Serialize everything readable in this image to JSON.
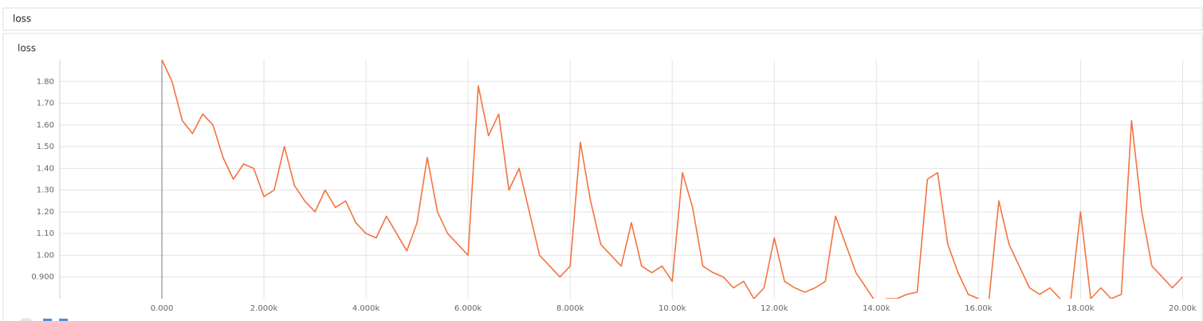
{
  "header": {
    "title": "loss"
  },
  "chart_data": {
    "type": "line",
    "title": "loss",
    "x": [
      0,
      200,
      400,
      600,
      800,
      1000,
      1200,
      1400,
      1600,
      1800,
      2000,
      2200,
      2400,
      2600,
      2800,
      3000,
      3200,
      3400,
      3600,
      3800,
      4000,
      4200,
      4400,
      4600,
      4800,
      5000,
      5200,
      5400,
      5600,
      5800,
      6000,
      6200,
      6400,
      6600,
      6800,
      7000,
      7200,
      7400,
      7600,
      7800,
      8000,
      8200,
      8400,
      8600,
      8800,
      9000,
      9200,
      9400,
      9600,
      9800,
      10000,
      10200,
      10400,
      10600,
      10800,
      11000,
      11200,
      11400,
      11600,
      11800,
      12000,
      12200,
      12400,
      12600,
      12800,
      13000,
      13200,
      13400,
      13600,
      13800,
      14000,
      14200,
      14400,
      14600,
      14800,
      15000,
      15200,
      15400,
      15600,
      15800,
      16000,
      16200,
      16400,
      16600,
      16800,
      17000,
      17200,
      17400,
      17600,
      17800,
      18000,
      18200,
      18400,
      18600,
      18800,
      19000,
      19200,
      19400,
      19600,
      19800,
      20000
    ],
    "series": [
      {
        "name": "loss",
        "color": "#f4733f",
        "values": [
          1.9,
          1.8,
          1.62,
          1.56,
          1.65,
          1.6,
          1.45,
          1.35,
          1.42,
          1.4,
          1.27,
          1.3,
          1.5,
          1.32,
          1.25,
          1.2,
          1.3,
          1.22,
          1.25,
          1.15,
          1.1,
          1.08,
          1.18,
          1.1,
          1.02,
          1.15,
          1.45,
          1.2,
          1.1,
          1.05,
          1.0,
          1.78,
          1.55,
          1.65,
          1.3,
          1.4,
          1.2,
          1.0,
          0.95,
          0.9,
          0.95,
          1.52,
          1.25,
          1.05,
          1.0,
          0.95,
          1.15,
          0.95,
          0.92,
          0.95,
          0.88,
          1.38,
          1.22,
          0.95,
          0.92,
          0.9,
          0.85,
          0.88,
          0.8,
          0.85,
          1.08,
          0.88,
          0.85,
          0.83,
          0.85,
          0.88,
          1.18,
          1.05,
          0.92,
          0.85,
          0.78,
          0.8,
          0.8,
          0.82,
          0.83,
          1.35,
          1.38,
          1.05,
          0.92,
          0.82,
          0.8,
          0.78,
          1.25,
          1.05,
          0.95,
          0.85,
          0.82,
          0.85,
          0.8,
          0.78,
          1.2,
          0.8,
          0.85,
          0.8,
          0.82,
          1.62,
          1.2,
          0.95,
          0.9,
          0.85,
          0.9
        ]
      }
    ],
    "xlim": [
      -2000,
      20400
    ],
    "ylim": [
      0.8,
      1.9
    ],
    "xticks": [
      {
        "value": 0,
        "label": "0.000"
      },
      {
        "value": 2000,
        "label": "2.000k"
      },
      {
        "value": 4000,
        "label": "4.000k"
      },
      {
        "value": 6000,
        "label": "6.000k"
      },
      {
        "value": 8000,
        "label": "8.000k"
      },
      {
        "value": 10000,
        "label": "10.00k"
      },
      {
        "value": 12000,
        "label": "12.00k"
      },
      {
        "value": 14000,
        "label": "14.00k"
      },
      {
        "value": 16000,
        "label": "16.00k"
      },
      {
        "value": 18000,
        "label": "18.00k"
      },
      {
        "value": 20000,
        "label": "20.00k"
      }
    ],
    "yticks": [
      {
        "value": 0.9,
        "label": "0.900"
      },
      {
        "value": 1.0,
        "label": "1.00"
      },
      {
        "value": 1.1,
        "label": "1.10"
      },
      {
        "value": 1.2,
        "label": "1.20"
      },
      {
        "value": 1.3,
        "label": "1.30"
      },
      {
        "value": 1.4,
        "label": "1.40"
      },
      {
        "value": 1.5,
        "label": "1.50"
      },
      {
        "value": 1.6,
        "label": "1.60"
      },
      {
        "value": 1.7,
        "label": "1.70"
      },
      {
        "value": 1.8,
        "label": "1.80"
      }
    ],
    "grid": true
  }
}
